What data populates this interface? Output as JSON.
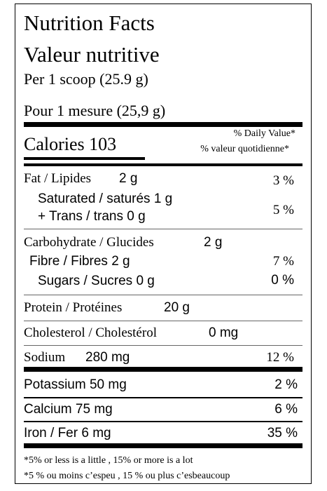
{
  "header": {
    "title_en": "Nutrition Facts",
    "title_fr": "Valeur nutritive",
    "serving_en": "Per 1 scoop (25.9 g)",
    "serving_fr": "Pour 1 mesure (25,9 g)"
  },
  "calories": {
    "label": "Calories 103",
    "dv_en": "% Daily Value*",
    "dv_fr": "% valeur quotidienne*"
  },
  "nutrients": {
    "fat": {
      "label": "Fat / Lipides",
      "amount": "2 g",
      "dv": "3 %"
    },
    "saturated": {
      "label": "Saturated / saturés 1 g"
    },
    "trans": {
      "label": "+ Trans / trans 0 g"
    },
    "sat_trans_dv": "5 %",
    "carbohydrate": {
      "label": "Carbohydrate / Glucides",
      "amount": "2 g"
    },
    "fibre": {
      "label": "Fibre / Fibres 2 g",
      "dv": "7 %"
    },
    "sugars": {
      "label": "Sugars / Sucres 0 g",
      "dv": "0 %"
    },
    "protein": {
      "label": "Protein / Protéines",
      "amount": "20 g"
    },
    "cholesterol": {
      "label": "Cholesterol / Cholestérol",
      "amount": "0 mg"
    },
    "sodium": {
      "label": "Sodium",
      "amount": "280 mg",
      "dv": "12 %"
    },
    "potassium": {
      "label": "Potassium 50 mg",
      "dv": "2 %"
    },
    "calcium": {
      "label": "Calcium 75 mg",
      "dv": "6 %"
    },
    "iron": {
      "label": "Iron / Fer 6 mg",
      "dv": "35 %"
    }
  },
  "footnote": {
    "en": "*5% or less is a little , 15% or more is a lot",
    "fr": "*5 % ou moins c’espeu , 15 % ou plus c’esbeaucoup"
  }
}
